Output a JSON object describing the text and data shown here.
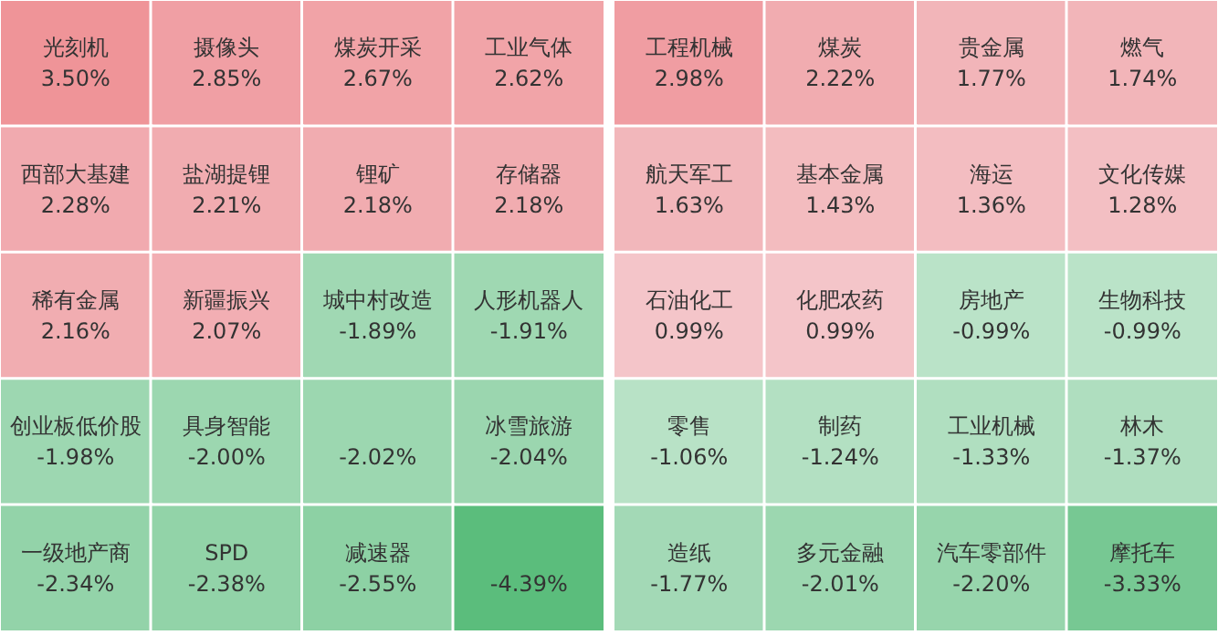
{
  "chart_data": [
    {
      "type": "other",
      "data_labels": true,
      "categories": [
        "光刻机",
        "摄像头",
        "煤炭开采",
        "工业气体",
        "西部大基建",
        "盐湖提锂",
        "锂矿",
        "存储器",
        "稀有金属",
        "新疆振兴",
        "城中村改造",
        "人形机器人",
        "创业板低价股",
        "具身智能",
        null,
        "冰雪旅游",
        "一级地产商",
        "SPD",
        "减速器",
        null
      ],
      "values": [
        3.5,
        2.85,
        2.67,
        2.62,
        2.28,
        2.21,
        2.18,
        2.18,
        2.16,
        2.07,
        -1.89,
        -1.91,
        -1.98,
        -2.0,
        -2.02,
        -2.04,
        -2.34,
        -2.38,
        -2.55,
        -4.39
      ],
      "value_labels": [
        "3.50%",
        "2.85%",
        "2.67%",
        "2.62%",
        "2.28%",
        "2.21%",
        "2.18%",
        "2.18%",
        "2.16%",
        "2.07%",
        "-1.89%",
        "-1.91%",
        "-1.98%",
        "-2.00%",
        "-2.02%",
        "-2.04%",
        "-2.34%",
        "-2.38%",
        "-2.55%",
        "-4.39%"
      ]
    },
    {
      "type": "other",
      "data_labels": true,
      "categories": [
        "工程机械",
        "煤炭",
        "贵金属",
        "燃气",
        "航天军工",
        "基本金属",
        "海运",
        "文化传媒",
        "石油化工",
        "化肥农药",
        "房地产",
        "生物科技",
        "零售",
        "制药",
        "工业机械",
        "林木",
        "造纸",
        "多元金融",
        "汽车零部件",
        "摩托车"
      ],
      "values": [
        2.98,
        2.22,
        1.77,
        1.74,
        1.63,
        1.43,
        1.36,
        1.28,
        0.99,
        0.99,
        -0.99,
        -0.99,
        -1.06,
        -1.24,
        -1.33,
        -1.37,
        -1.77,
        -2.01,
        -2.2,
        -3.33
      ],
      "value_labels": [
        "2.98%",
        "2.22%",
        "1.77%",
        "1.74%",
        "1.63%",
        "1.43%",
        "1.36%",
        "1.28%",
        "0.99%",
        "0.99%",
        "-0.99%",
        "-0.99%",
        "-1.06%",
        "-1.24%",
        "-1.33%",
        "-1.37%",
        "-1.77%",
        "-2.01%",
        "-2.20%",
        "-3.33%"
      ]
    }
  ]
}
